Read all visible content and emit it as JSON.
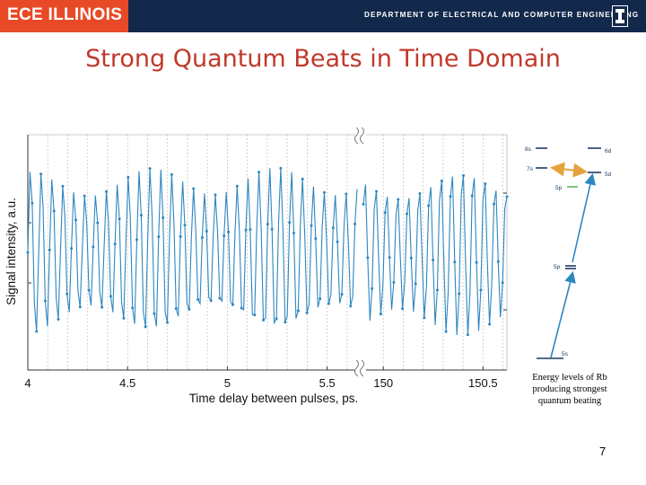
{
  "header": {
    "logo_text": "ECE ILLINOIS",
    "department": "DEPARTMENT OF ELECTRICAL AND COMPUTER ENGINEERING",
    "banner_color": "#13294b",
    "logo_color": "#e84a27"
  },
  "slide": {
    "title": "Strong Quantum Beats in Time Domain",
    "title_color": "#c0392b",
    "page_number": "7"
  },
  "chart_data": {
    "type": "line",
    "xlabel": "Time delay between pulses, ps.",
    "ylabel": "Signal intensity, a.u.",
    "axis_break": true,
    "segments": [
      {
        "xlim": [
          4.0,
          5.65
        ],
        "ticks": [
          "4",
          "4.5",
          "5",
          "5.5"
        ],
        "tick_values": [
          4.0,
          4.5,
          5.0,
          5.5
        ]
      },
      {
        "xlim": [
          149.9,
          150.62
        ],
        "ticks": [
          "150",
          "150.5"
        ],
        "tick_values": [
          150.0,
          150.5
        ]
      }
    ],
    "ylim": [
      0,
      1
    ],
    "grid": "dotted vertical",
    "series": [
      {
        "color": "#2e86c1",
        "beat_period_ps": 0.0545,
        "envelope_period_ps": 0.62,
        "min_level": 0.14,
        "max_level": 0.86,
        "y_unit": "fraction of axis range"
      }
    ]
  },
  "energy_diagram": {
    "levels": [
      "8s",
      "7s",
      "6d",
      "5d",
      "5p",
      "5p",
      "5s"
    ],
    "arrow_colors": {
      "excitation": "#2e86c1",
      "beat": "#e6a23c",
      "level_5p": "#5cb85c"
    },
    "caption": "Energy levels of Rb producing strongest quantum beating"
  }
}
